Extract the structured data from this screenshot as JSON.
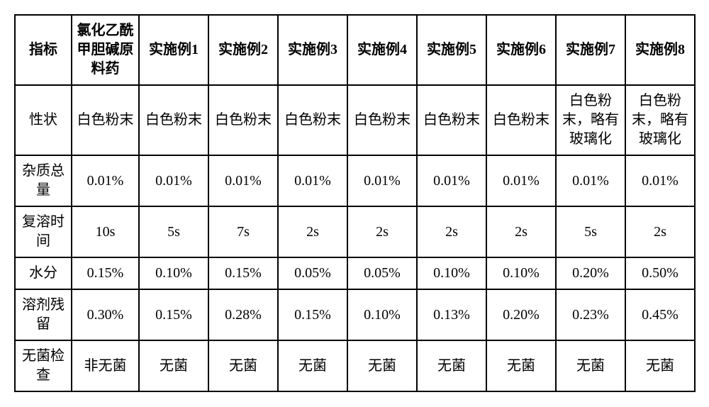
{
  "table": {
    "type": "table",
    "border_color": "#000000",
    "border_width": 2,
    "background_color": "#ffffff",
    "text_color": "#000000",
    "font_size_pt": 15,
    "header_font_weight": "bold",
    "columns": [
      {
        "key": "indicator",
        "label": "指标"
      },
      {
        "key": "ref",
        "label": "氯化乙酰甲胆碱原料药"
      },
      {
        "key": "ex1",
        "label": "实施例1"
      },
      {
        "key": "ex2",
        "label": "实施例2"
      },
      {
        "key": "ex3",
        "label": "实施例3"
      },
      {
        "key": "ex4",
        "label": "实施例4"
      },
      {
        "key": "ex5",
        "label": "实施例5"
      },
      {
        "key": "ex6",
        "label": "实施例6"
      },
      {
        "key": "ex7",
        "label": "实施例7"
      },
      {
        "key": "ex8",
        "label": "实施例8"
      }
    ],
    "rows": [
      {
        "indicator": "性状",
        "ref": "白色粉末",
        "ex1": "白色粉末",
        "ex2": "白色粉末",
        "ex3": "白色粉末",
        "ex4": "白色粉末",
        "ex5": "白色粉末",
        "ex6": "白色粉末",
        "ex7": "白色粉末，略有玻璃化",
        "ex8": "白色粉末，略有玻璃化"
      },
      {
        "indicator": "杂质总量",
        "ref": "0.01%",
        "ex1": "0.01%",
        "ex2": "0.01%",
        "ex3": "0.01%",
        "ex4": "0.01%",
        "ex5": "0.01%",
        "ex6": "0.01%",
        "ex7": "0.01%",
        "ex8": "0.01%"
      },
      {
        "indicator": "复溶时间",
        "ref": "10s",
        "ex1": "5s",
        "ex2": "7s",
        "ex3": "2s",
        "ex4": "2s",
        "ex5": "2s",
        "ex6": "2s",
        "ex7": "5s",
        "ex8": "2s"
      },
      {
        "indicator": "水分",
        "ref": "0.15%",
        "ex1": "0.10%",
        "ex2": "0.15%",
        "ex3": "0.05%",
        "ex4": "0.05%",
        "ex5": "0.10%",
        "ex6": "0.10%",
        "ex7": "0.20%",
        "ex8": "0.50%"
      },
      {
        "indicator": "溶剂残留",
        "ref": "0.30%",
        "ex1": "0.15%",
        "ex2": "0.28%",
        "ex3": "0.15%",
        "ex4": "0.10%",
        "ex5": "0.13%",
        "ex6": "0.20%",
        "ex7": "0.23%",
        "ex8": "0.45%"
      },
      {
        "indicator": "无菌检查",
        "ref": "非无菌",
        "ex1": "无菌",
        "ex2": "无菌",
        "ex3": "无菌",
        "ex4": "无菌",
        "ex5": "无菌",
        "ex6": "无菌",
        "ex7": "无菌",
        "ex8": "无菌"
      }
    ]
  }
}
